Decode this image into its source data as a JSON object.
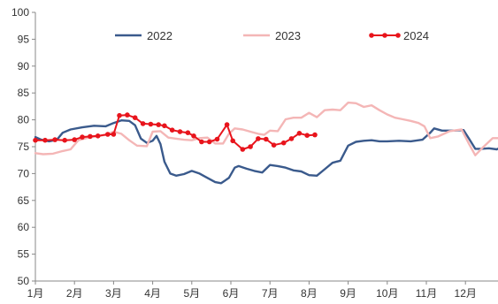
{
  "chart_data": {
    "type": "line",
    "x_labels": [
      "1月",
      "2月",
      "3月",
      "4月",
      "5月",
      "6月",
      "7月",
      "8月",
      "9月",
      "10月",
      "11月",
      "12月"
    ],
    "ylim": [
      50,
      100
    ],
    "y_ticks": [
      50,
      55,
      60,
      65,
      70,
      75,
      80,
      85,
      90,
      95,
      100
    ],
    "x_unit": "month index (1 = start of January)",
    "legend_position": "top",
    "grid": false,
    "series": [
      {
        "name": "2022",
        "color": "#3a5a8c",
        "markers": false,
        "points": [
          [
            1.0,
            76.8
          ],
          [
            1.15,
            76.3
          ],
          [
            1.35,
            76.0
          ],
          [
            1.55,
            76.3
          ],
          [
            1.7,
            77.6
          ],
          [
            1.9,
            78.2
          ],
          [
            2.2,
            78.6
          ],
          [
            2.5,
            78.9
          ],
          [
            2.8,
            78.8
          ],
          [
            3.0,
            79.4
          ],
          [
            3.2,
            79.9
          ],
          [
            3.4,
            79.8
          ],
          [
            3.55,
            79.0
          ],
          [
            3.7,
            76.5
          ],
          [
            3.85,
            75.7
          ],
          [
            4.0,
            76.1
          ],
          [
            4.1,
            77.0
          ],
          [
            4.2,
            75.5
          ],
          [
            4.3,
            72.2
          ],
          [
            4.45,
            70.0
          ],
          [
            4.6,
            69.6
          ],
          [
            4.8,
            69.9
          ],
          [
            5.0,
            70.5
          ],
          [
            5.2,
            70.0
          ],
          [
            5.4,
            69.2
          ],
          [
            5.6,
            68.4
          ],
          [
            5.75,
            68.2
          ],
          [
            5.95,
            69.2
          ],
          [
            6.1,
            71.1
          ],
          [
            6.2,
            71.4
          ],
          [
            6.4,
            70.9
          ],
          [
            6.6,
            70.5
          ],
          [
            6.8,
            70.2
          ],
          [
            7.0,
            71.6
          ],
          [
            7.2,
            71.4
          ],
          [
            7.4,
            71.1
          ],
          [
            7.6,
            70.6
          ],
          [
            7.8,
            70.4
          ],
          [
            8.0,
            69.7
          ],
          [
            8.2,
            69.6
          ],
          [
            8.4,
            70.8
          ],
          [
            8.6,
            72.0
          ],
          [
            8.8,
            72.4
          ],
          [
            9.0,
            75.2
          ],
          [
            9.2,
            75.9
          ],
          [
            9.4,
            76.1
          ],
          [
            9.6,
            76.2
          ],
          [
            9.8,
            76.0
          ],
          [
            10.0,
            76.0
          ],
          [
            10.3,
            76.1
          ],
          [
            10.6,
            76.0
          ],
          [
            10.9,
            76.3
          ],
          [
            11.1,
            77.6
          ],
          [
            11.2,
            78.4
          ],
          [
            11.4,
            78.0
          ],
          [
            11.7,
            78.0
          ],
          [
            11.95,
            78.1
          ],
          [
            12.1,
            76.4
          ],
          [
            12.25,
            74.6
          ],
          [
            12.4,
            74.6
          ],
          [
            12.6,
            74.7
          ],
          [
            12.8,
            74.5
          ],
          [
            12.95,
            75.0
          ]
        ]
      },
      {
        "name": "2023",
        "color": "#f4b6b6",
        "markers": false,
        "points": [
          [
            1.0,
            73.8
          ],
          [
            1.2,
            73.6
          ],
          [
            1.45,
            73.7
          ],
          [
            1.7,
            74.2
          ],
          [
            1.9,
            74.5
          ],
          [
            2.1,
            76.2
          ],
          [
            2.3,
            76.6
          ],
          [
            2.55,
            76.9
          ],
          [
            2.8,
            77.2
          ],
          [
            3.0,
            77.8
          ],
          [
            3.2,
            77.4
          ],
          [
            3.4,
            76.2
          ],
          [
            3.6,
            75.2
          ],
          [
            3.85,
            75.1
          ],
          [
            4.0,
            77.8
          ],
          [
            4.2,
            77.9
          ],
          [
            4.4,
            76.7
          ],
          [
            4.6,
            76.5
          ],
          [
            4.8,
            76.3
          ],
          [
            5.0,
            76.2
          ],
          [
            5.2,
            76.6
          ],
          [
            5.4,
            76.7
          ],
          [
            5.6,
            75.6
          ],
          [
            5.8,
            75.6
          ],
          [
            5.95,
            77.4
          ],
          [
            6.1,
            78.4
          ],
          [
            6.3,
            78.2
          ],
          [
            6.5,
            77.8
          ],
          [
            6.7,
            77.4
          ],
          [
            6.85,
            77.2
          ],
          [
            7.0,
            78.0
          ],
          [
            7.2,
            77.9
          ],
          [
            7.4,
            80.1
          ],
          [
            7.6,
            80.4
          ],
          [
            7.8,
            80.4
          ],
          [
            8.0,
            81.3
          ],
          [
            8.2,
            80.5
          ],
          [
            8.4,
            81.8
          ],
          [
            8.6,
            81.9
          ],
          [
            8.8,
            81.8
          ],
          [
            9.0,
            83.2
          ],
          [
            9.2,
            83.1
          ],
          [
            9.4,
            82.4
          ],
          [
            9.6,
            82.7
          ],
          [
            9.8,
            81.8
          ],
          [
            10.0,
            81.0
          ],
          [
            10.2,
            80.4
          ],
          [
            10.4,
            80.1
          ],
          [
            10.6,
            79.8
          ],
          [
            10.8,
            79.4
          ],
          [
            10.95,
            78.8
          ],
          [
            11.1,
            76.6
          ],
          [
            11.3,
            76.9
          ],
          [
            11.6,
            77.9
          ],
          [
            11.9,
            78.2
          ],
          [
            12.1,
            75.4
          ],
          [
            12.25,
            73.4
          ],
          [
            12.45,
            74.9
          ],
          [
            12.7,
            76.6
          ],
          [
            12.9,
            76.6
          ]
        ]
      },
      {
        "name": "2024",
        "color": "#e8141c",
        "markers": true,
        "points": [
          [
            1.0,
            76.2
          ],
          [
            1.25,
            76.2
          ],
          [
            1.5,
            76.3
          ],
          [
            1.75,
            76.2
          ],
          [
            2.0,
            76.3
          ],
          [
            2.2,
            76.8
          ],
          [
            2.4,
            76.9
          ],
          [
            2.6,
            77.0
          ],
          [
            2.85,
            77.3
          ],
          [
            3.0,
            77.3
          ],
          [
            3.15,
            80.8
          ],
          [
            3.35,
            80.9
          ],
          [
            3.55,
            80.4
          ],
          [
            3.75,
            79.3
          ],
          [
            3.95,
            79.2
          ],
          [
            4.15,
            79.1
          ],
          [
            4.3,
            78.9
          ],
          [
            4.5,
            78.1
          ],
          [
            4.7,
            77.8
          ],
          [
            4.9,
            77.6
          ],
          [
            5.05,
            77.0
          ],
          [
            5.25,
            75.9
          ],
          [
            5.45,
            75.9
          ],
          [
            5.65,
            76.4
          ],
          [
            5.9,
            79.1
          ],
          [
            6.05,
            76.1
          ],
          [
            6.3,
            74.5
          ],
          [
            6.5,
            75.0
          ],
          [
            6.7,
            76.5
          ],
          [
            6.9,
            76.4
          ],
          [
            7.1,
            75.3
          ],
          [
            7.35,
            75.7
          ],
          [
            7.55,
            76.5
          ],
          [
            7.75,
            77.5
          ],
          [
            7.95,
            77.1
          ],
          [
            8.15,
            77.2
          ]
        ]
      }
    ]
  }
}
